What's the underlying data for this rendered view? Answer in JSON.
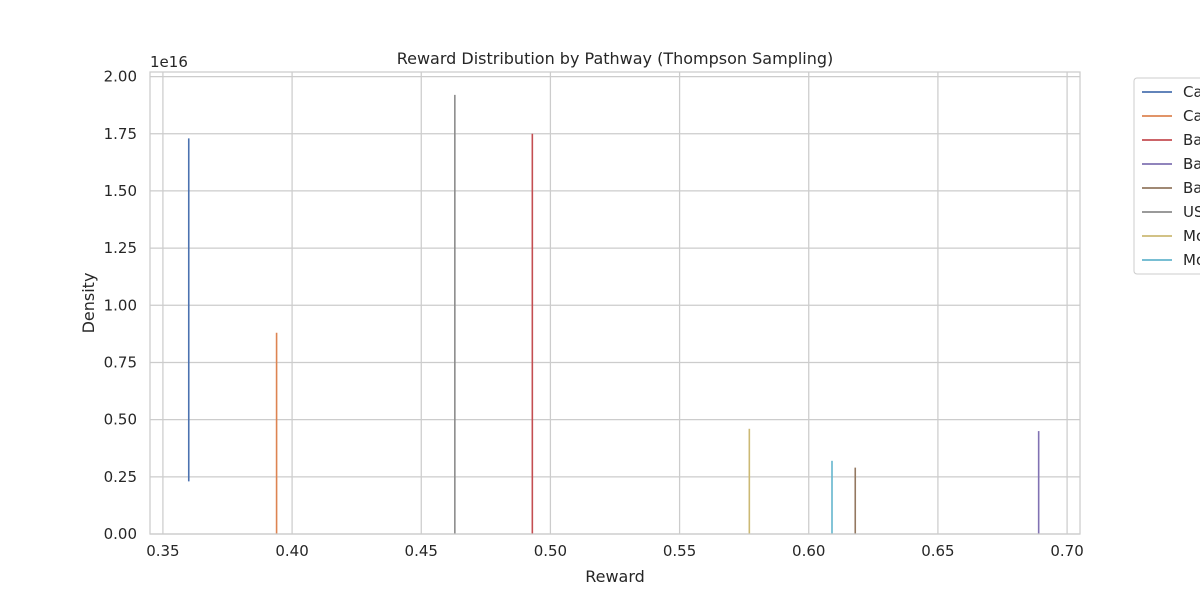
{
  "chart_data": {
    "type": "line",
    "title": "Reward Distribution by Pathway (Thompson Sampling)",
    "xlabel": "Reward",
    "ylabel": "Density",
    "y_offset_label": "1e16",
    "xlim": [
      0.345,
      0.705
    ],
    "ylim": [
      0,
      2.02
    ],
    "xticks": [
      0.35,
      0.4,
      0.45,
      0.5,
      0.55,
      0.6,
      0.65,
      0.7
    ],
    "xtick_labels": [
      "0.35",
      "0.40",
      "0.45",
      "0.50",
      "0.55",
      "0.60",
      "0.65",
      "0.70"
    ],
    "yticks": [
      0,
      0.25,
      0.5,
      0.75,
      1.0,
      1.25,
      1.5,
      1.75,
      2.0
    ],
    "ytick_labels": [
      "0.00",
      "0.25",
      "0.50",
      "0.75",
      "1.00",
      "1.25",
      "1.50",
      "1.75",
      "2.00"
    ],
    "grid": true,
    "legend_position": "outside-right",
    "series": [
      {
        "name": "Ca",
        "color": "#4c72b0",
        "x": 0.36,
        "y_low": 0.23,
        "y_high": 1.73
      },
      {
        "name": "Ca",
        "color": "#dd8452",
        "x": 0.394,
        "y_low": 0.0,
        "y_high": 0.88
      },
      {
        "name": "Ba",
        "color": "#c44e52",
        "x": 0.493,
        "y_low": 0.0,
        "y_high": 1.75
      },
      {
        "name": "Ba",
        "color": "#8172b3",
        "x": 0.689,
        "y_low": 0.0,
        "y_high": 0.45
      },
      {
        "name": "Ba",
        "color": "#937860",
        "x": 0.618,
        "y_low": 0.0,
        "y_high": 0.29
      },
      {
        "name": "US",
        "color": "#8c8c8c",
        "x": 0.463,
        "y_low": 0.0,
        "y_high": 1.92
      },
      {
        "name": "Mo",
        "color": "#ccb974",
        "x": 0.577,
        "y_low": 0.0,
        "y_high": 0.46
      },
      {
        "name": "Mo",
        "color": "#64b5cd",
        "x": 0.609,
        "y_low": 0.0,
        "y_high": 0.32
      }
    ]
  }
}
